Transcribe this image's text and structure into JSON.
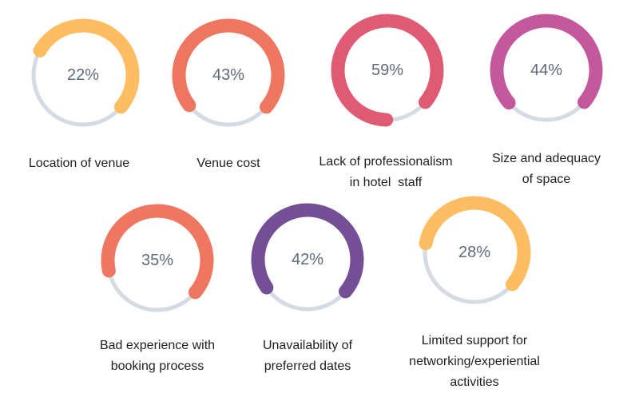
{
  "colors": {
    "track": "#d5dbe3",
    "percent_text": "#5f6b7a",
    "yellow": "#fdbd62",
    "coral": "#ef7762",
    "rose": "#df5a73",
    "magenta": "#c4589c",
    "purple": "#744f96"
  },
  "chart_data": {
    "type": "donut",
    "unit": "%",
    "items": [
      {
        "label_lines": [
          "Location of venue"
        ],
        "value": 22,
        "value_text": "22%",
        "color": "#fdbd62"
      },
      {
        "label_lines": [
          "Venue cost"
        ],
        "value": 43,
        "value_text": "43%",
        "color": "#ef7762"
      },
      {
        "label_lines": [
          "Lack of professionalism",
          "in hotel  staff"
        ],
        "value": 59,
        "value_text": "59%",
        "color": "#df5a73"
      },
      {
        "label_lines": [
          "Size and adequacy",
          "of space"
        ],
        "value": 44,
        "value_text": "44%",
        "color": "#c4589c"
      },
      {
        "label_lines": [
          "Bad experience with",
          "booking process"
        ],
        "value": 35,
        "value_text": "35%",
        "color": "#ef7762"
      },
      {
        "label_lines": [
          "Unavailability of",
          "preferred dates"
        ],
        "value": 42,
        "value_text": "42%",
        "color": "#744f96"
      },
      {
        "label_lines": [
          "Limited support for",
          "networking/experiential",
          "activities"
        ],
        "value": 28,
        "value_text": "28%",
        "color": "#fdbd62"
      }
    ]
  }
}
